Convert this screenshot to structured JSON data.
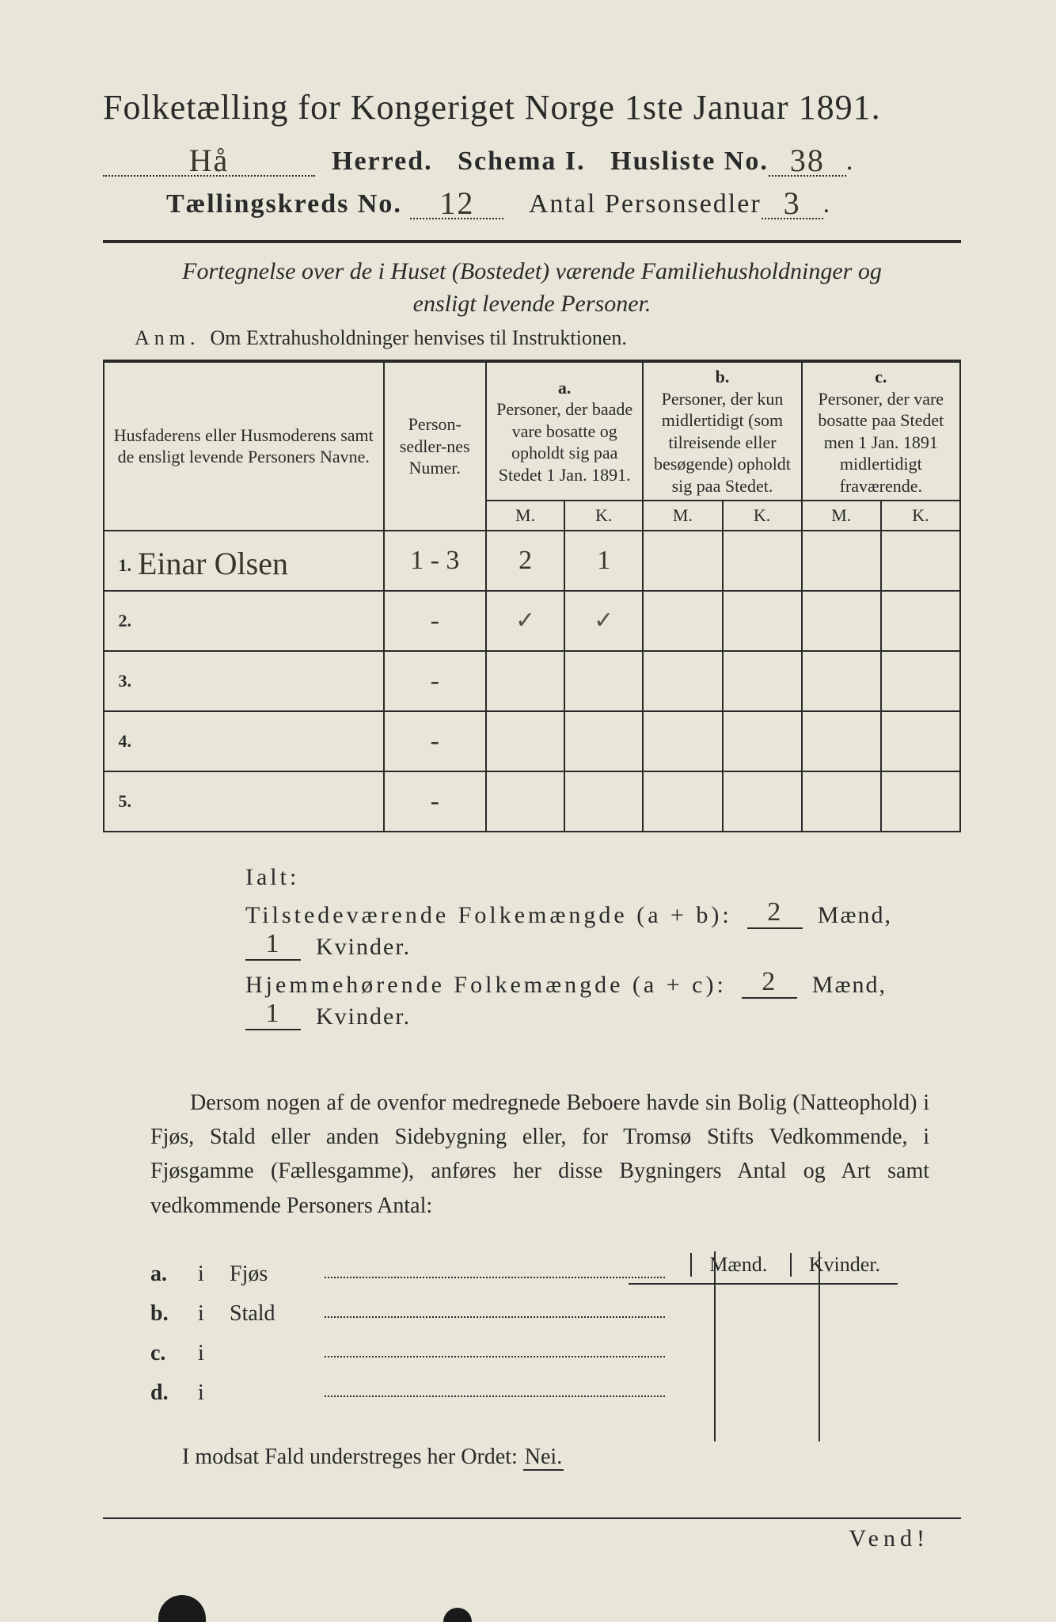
{
  "colors": {
    "paper": "#e8e6d8",
    "ink": "#2a2a2a",
    "handwriting": "#3a352a"
  },
  "typography": {
    "printed_family": "Times New Roman / serif",
    "handwritten_family": "cursive",
    "title_size_pt": 33,
    "body_size_pt": 21
  },
  "header": {
    "title": "Folketælling for Kongeriget Norge 1ste Januar 1891.",
    "herred_value": "Hå",
    "herred_label": "Herred.",
    "schema_label": "Schema I.",
    "husliste_label": "Husliste No.",
    "husliste_value": "38",
    "kreds_label": "Tællingskreds No.",
    "kreds_value": "12",
    "personsedler_label": "Antal Personsedler",
    "personsedler_value": "3"
  },
  "subtitle": {
    "line": "Fortegnelse over de i Huset (Bostedet) værende Familiehusholdninger og ensligt levende Personer.",
    "anm_label": "Anm.",
    "anm_text": "Om Extrahusholdninger henvises til Instruktionen."
  },
  "table_head": {
    "name_col": "Husfaderens eller Husmoderens samt de ensligt levende Personers Navne.",
    "num_col": "Person-sedler-nes Numer.",
    "a_label": "a.",
    "a_text": "Personer, der baade vare bosatte og opholdt sig paa Stedet 1 Jan. 1891.",
    "b_label": "b.",
    "b_text": "Personer, der kun midlertidigt (som tilreisende eller besøgende) opholdt sig paa Stedet.",
    "c_label": "c.",
    "c_text": "Personer, der vare bosatte paa Stedet men 1 Jan. 1891 midlertidigt fraværende.",
    "m": "M.",
    "k": "K."
  },
  "rows": [
    {
      "n": "1.",
      "name": "Einar Olsen",
      "num": "1 - 3",
      "a_m": "2",
      "a_k": "1",
      "b_m": "",
      "b_k": "",
      "c_m": "",
      "c_k": ""
    },
    {
      "n": "2.",
      "name": "",
      "num": "-",
      "a_m": "v",
      "a_k": "v",
      "b_m": "",
      "b_k": "",
      "c_m": "",
      "c_k": ""
    },
    {
      "n": "3.",
      "name": "",
      "num": "-",
      "a_m": "",
      "a_k": "",
      "b_m": "",
      "b_k": "",
      "c_m": "",
      "c_k": ""
    },
    {
      "n": "4.",
      "name": "",
      "num": "-",
      "a_m": "",
      "a_k": "",
      "b_m": "",
      "b_k": "",
      "c_m": "",
      "c_k": ""
    },
    {
      "n": "5.",
      "name": "",
      "num": "-",
      "a_m": "",
      "a_k": "",
      "b_m": "",
      "b_k": "",
      "c_m": "",
      "c_k": ""
    }
  ],
  "ialt": {
    "label": "Ialt:",
    "line1_label": "Tilstedeværende Folkemængde (a + b):",
    "line1_m": "2",
    "line1_k": "1",
    "line2_label": "Hjemmehørende Folkemængde (a + c):",
    "line2_m": "2",
    "line2_k": "1",
    "m_word": "Mænd,",
    "k_word": "Kvinder."
  },
  "dersom": {
    "text": "Dersom nogen af de ovenfor medregnede Beboere havde sin Bolig (Natte­ophold) i Fjøs, Stald eller anden Sidebygning eller, for Tromsø Stifts Ved­kommende, i Fjøsgamme (Fællesgamme), anføres her disse Bygningers Antal og Art samt vedkommende Personers Antal:"
  },
  "mini": {
    "head_m": "Mænd.",
    "head_k": "Kvinder.",
    "rows": [
      {
        "lead": "a.",
        "i": "i",
        "label": "Fjøs"
      },
      {
        "lead": "b.",
        "i": "i",
        "label": "Stald"
      },
      {
        "lead": "c.",
        "i": "i",
        "label": ""
      },
      {
        "lead": "d.",
        "i": "i",
        "label": ""
      }
    ]
  },
  "nei": {
    "text_pre": "I modsat Fald understreges her Ordet: ",
    "nei": "Nei."
  },
  "footer": {
    "vend": "Vend!"
  }
}
